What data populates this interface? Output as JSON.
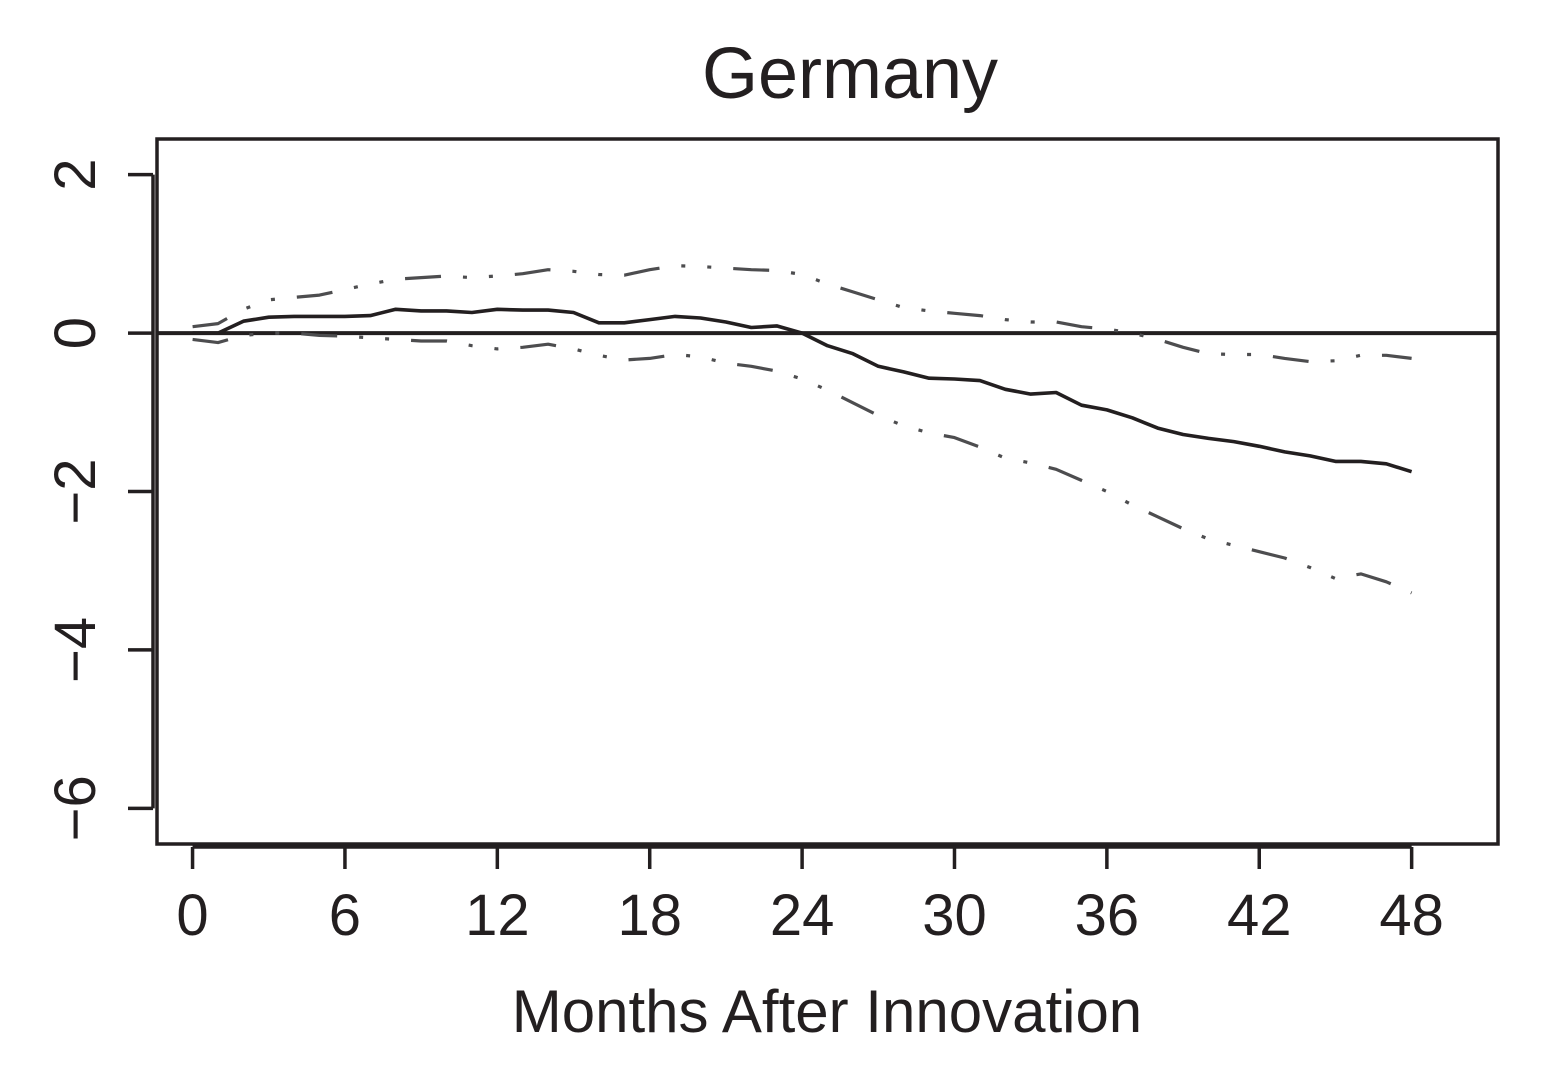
{
  "chart_data": {
    "type": "line",
    "title": "Germany",
    "xlabel": "Months After Innovation",
    "ylabel": "",
    "xlim": [
      -1.4,
      51.4
    ],
    "ylim": [
      -6.45,
      2.45
    ],
    "xticks": [
      0,
      6,
      12,
      18,
      24,
      30,
      36,
      42,
      48
    ],
    "xtick_labels": [
      "0",
      "6",
      "12",
      "18",
      "24",
      "30",
      "36",
      "42",
      "48"
    ],
    "yticks": [
      2,
      0,
      -2,
      -4,
      -6
    ],
    "ytick_labels": [
      "2",
      "0",
      "−2",
      "−4",
      "−6"
    ],
    "reference_line": {
      "y": 0
    },
    "grid": false,
    "legend": "none",
    "x": [
      0,
      1,
      2,
      3,
      4,
      5,
      6,
      7,
      8,
      9,
      10,
      11,
      12,
      13,
      14,
      15,
      16,
      17,
      18,
      19,
      20,
      21,
      22,
      23,
      24,
      25,
      26,
      27,
      28,
      29,
      30,
      31,
      32,
      33,
      34,
      35,
      36,
      37,
      38,
      39,
      40,
      41,
      42,
      43,
      44,
      45,
      46,
      47,
      48
    ],
    "series": [
      {
        "role": "estimate",
        "style": "solid",
        "color": "#231f20",
        "values": [
          0.0,
          0.0,
          0.15,
          0.2,
          0.21,
          0.21,
          0.21,
          0.22,
          0.3,
          0.28,
          0.28,
          0.26,
          0.3,
          0.29,
          0.29,
          0.26,
          0.13,
          0.13,
          0.17,
          0.21,
          0.19,
          0.14,
          0.07,
          0.09,
          0.0,
          -0.16,
          -0.26,
          -0.42,
          -0.49,
          -0.57,
          -0.58,
          -0.6,
          -0.71,
          -0.77,
          -0.75,
          -0.91,
          -0.97,
          -1.07,
          -1.2,
          -1.28,
          -1.33,
          -1.37,
          -1.43,
          -1.5,
          -1.55,
          -1.62,
          -1.62,
          -1.65,
          -1.75
        ]
      },
      {
        "role": "upper band",
        "style": "dash-dot",
        "color": "#4d4d4f",
        "values": [
          0.08,
          0.12,
          0.3,
          0.42,
          0.45,
          0.48,
          0.55,
          0.62,
          0.68,
          0.7,
          0.72,
          0.7,
          0.72,
          0.75,
          0.8,
          0.78,
          0.74,
          0.73,
          0.8,
          0.85,
          0.84,
          0.82,
          0.8,
          0.79,
          0.74,
          0.62,
          0.52,
          0.42,
          0.32,
          0.28,
          0.25,
          0.22,
          0.17,
          0.14,
          0.14,
          0.08,
          0.05,
          0.0,
          -0.08,
          -0.18,
          -0.26,
          -0.27,
          -0.27,
          -0.32,
          -0.36,
          -0.35,
          -0.28,
          -0.28,
          -0.32
        ]
      },
      {
        "role": "lower band",
        "style": "dash-dot",
        "color": "#4d4d4f",
        "values": [
          -0.08,
          -0.12,
          -0.03,
          0.0,
          0.0,
          -0.03,
          -0.04,
          -0.06,
          -0.08,
          -0.1,
          -0.1,
          -0.16,
          -0.2,
          -0.18,
          -0.14,
          -0.2,
          -0.28,
          -0.34,
          -0.32,
          -0.27,
          -0.3,
          -0.38,
          -0.42,
          -0.48,
          -0.58,
          -0.72,
          -0.88,
          -1.04,
          -1.17,
          -1.26,
          -1.32,
          -1.44,
          -1.58,
          -1.64,
          -1.72,
          -1.86,
          -2.0,
          -2.17,
          -2.32,
          -2.47,
          -2.6,
          -2.68,
          -2.76,
          -2.84,
          -2.96,
          -3.1,
          -3.04,
          -3.14,
          -3.28
        ]
      }
    ]
  }
}
